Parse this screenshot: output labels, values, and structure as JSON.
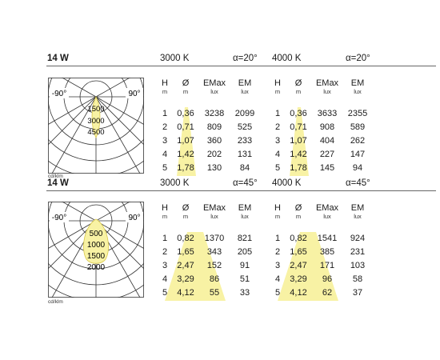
{
  "sections": [
    {
      "power": "14 W",
      "polar": {
        "left_label": "-90°",
        "right_label": "90°",
        "scale_labels": [
          "1500",
          "3000",
          "4500"
        ],
        "unit": "cd/klm",
        "shape": "narrow"
      },
      "groups": [
        {
          "temp": "3000 K",
          "alpha": "α=20°",
          "headers": [
            {
              "label": "H",
              "unit": "m"
            },
            {
              "label": "Ø",
              "unit": "m"
            },
            {
              "label": "EMax",
              "unit": "lux"
            },
            {
              "label": "EM",
              "unit": "lux"
            }
          ],
          "rows": [
            [
              "1",
              "0,36",
              "3238",
              "2099"
            ],
            [
              "2",
              "0,71",
              "809",
              "525"
            ],
            [
              "3",
              "1,07",
              "360",
              "233"
            ],
            [
              "4",
              "1,42",
              "202",
              "131"
            ],
            [
              "5",
              "1,78",
              "130",
              "84"
            ]
          ]
        },
        {
          "temp": "4000 K",
          "alpha": "α=20°",
          "headers": [
            {
              "label": "H",
              "unit": "m"
            },
            {
              "label": "Ø",
              "unit": "m"
            },
            {
              "label": "EMax",
              "unit": "lux"
            },
            {
              "label": "EM",
              "unit": "lux"
            }
          ],
          "rows": [
            [
              "1",
              "0,36",
              "3633",
              "2355"
            ],
            [
              "2",
              "0,71",
              "908",
              "589"
            ],
            [
              "3",
              "1,07",
              "404",
              "262"
            ],
            [
              "4",
              "1,42",
              "227",
              "147"
            ],
            [
              "5",
              "1,78",
              "145",
              "94"
            ]
          ]
        }
      ]
    },
    {
      "power": "14 W",
      "polar": {
        "left_label": "-90°",
        "right_label": "90°",
        "scale_labels": [
          "500",
          "1000",
          "1500",
          "2000"
        ],
        "unit": "cd/klm",
        "shape": "wide"
      },
      "groups": [
        {
          "temp": "3000 K",
          "alpha": "α=45°",
          "headers": [
            {
              "label": "H",
              "unit": "m"
            },
            {
              "label": "Ø",
              "unit": "m"
            },
            {
              "label": "EMax",
              "unit": "lux"
            },
            {
              "label": "EM",
              "unit": "lux"
            }
          ],
          "rows": [
            [
              "1",
              "0,82",
              "1370",
              "821"
            ],
            [
              "2",
              "1,65",
              "343",
              "205"
            ],
            [
              "3",
              "2,47",
              "152",
              "91"
            ],
            [
              "4",
              "3,29",
              "86",
              "51"
            ],
            [
              "5",
              "4,12",
              "55",
              "33"
            ]
          ]
        },
        {
          "temp": "4000 K",
          "alpha": "α=45°",
          "headers": [
            {
              "label": "H",
              "unit": "m"
            },
            {
              "label": "Ø",
              "unit": "m"
            },
            {
              "label": "EMax",
              "unit": "lux"
            },
            {
              "label": "EM",
              "unit": "lux"
            }
          ],
          "rows": [
            [
              "1",
              "0,82",
              "1541",
              "924"
            ],
            [
              "2",
              "1,65",
              "385",
              "231"
            ],
            [
              "3",
              "2,47",
              "171",
              "103"
            ],
            [
              "4",
              "3,29",
              "96",
              "58"
            ],
            [
              "5",
              "4,12",
              "62",
              "37"
            ]
          ]
        }
      ]
    }
  ],
  "colors": {
    "beam": "#f8f2a4",
    "beam_line": "#d9c84a",
    "grid": "#333333",
    "rule": "#666666"
  }
}
